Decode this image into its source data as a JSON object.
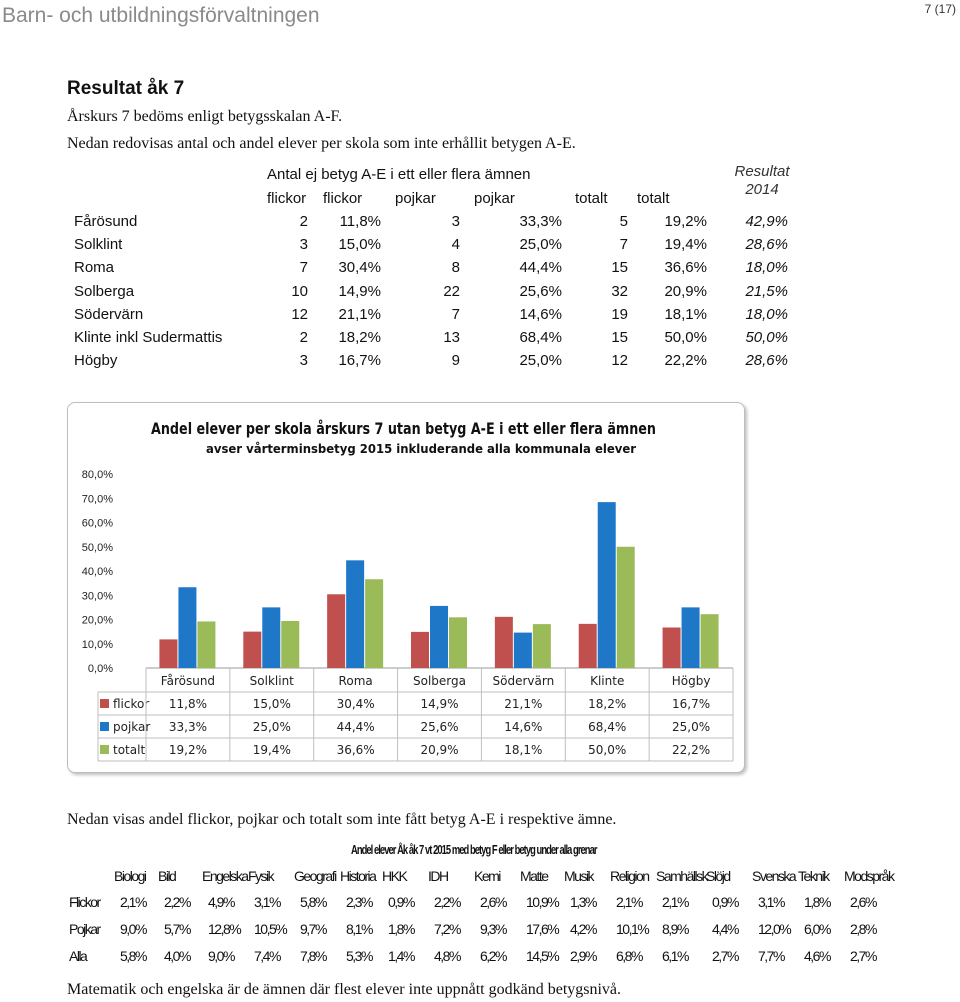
{
  "header": {
    "title": "Barn- och utbildningsförvaltningen",
    "page": "7 (17)"
  },
  "section": {
    "title": "Resultat åk 7",
    "lines": [
      "Årskurs 7 bedöms enligt betygsskalan A-F.",
      "Nedan redovisas antal och andel elever per skola som inte erhållit betygen A-E."
    ]
  },
  "table": {
    "group_header": "Antal ej betyg A-E i ett eller flera ämnen",
    "result_header": [
      "Resultat",
      "2014"
    ],
    "columns": [
      "flickor",
      "flickor",
      "pojkar",
      "pojkar",
      "totalt",
      "totalt"
    ],
    "rows": [
      {
        "name": "Fårösund",
        "cells": [
          "2",
          "11,8%",
          "3",
          "33,3%",
          "5",
          "19,2%"
        ],
        "result": "42,9%"
      },
      {
        "name": "Solklint",
        "cells": [
          "3",
          "15,0%",
          "4",
          "25,0%",
          "7",
          "19,4%"
        ],
        "result": "28,6%"
      },
      {
        "name": "Roma",
        "cells": [
          "7",
          "30,4%",
          "8",
          "44,4%",
          "15",
          "36,6%"
        ],
        "result": "18,0%"
      },
      {
        "name": "Solberga",
        "cells": [
          "10",
          "14,9%",
          "22",
          "25,6%",
          "32",
          "20,9%"
        ],
        "result": "21,5%"
      },
      {
        "name": "Södervärn",
        "cells": [
          "12",
          "21,1%",
          "7",
          "14,6%",
          "19",
          "18,1%"
        ],
        "result": "18,0%"
      },
      {
        "name": "Klinte inkl Sudermattis",
        "cells": [
          "2",
          "18,2%",
          "13",
          "68,4%",
          "15",
          "50,0%"
        ],
        "result": "50,0%"
      },
      {
        "name": "Högby",
        "cells": [
          "3",
          "16,7%",
          "9",
          "25,0%",
          "12",
          "22,2%"
        ],
        "result": "28,6%"
      }
    ]
  },
  "chart_data": {
    "type": "bar",
    "title": "Andel elever per skola årskurs 7 utan betyg A-E i ett eller flera ämnen",
    "subtitle": "avser vårterminsbetyg 2015 inkluderande alla kommunala elever",
    "categories": [
      "Fårösund",
      "Solklint",
      "Roma",
      "Solberga",
      "Södervärn",
      "Klinte",
      "Högby"
    ],
    "yticks": [
      "0,0%",
      "10,0%",
      "20,0%",
      "30,0%",
      "40,0%",
      "50,0%",
      "60,0%",
      "70,0%",
      "80,0%"
    ],
    "ylim": [
      0,
      80
    ],
    "grid": false,
    "legend": "data-table",
    "series": [
      {
        "name": "flickor",
        "color": "#c0504d",
        "values": [
          11.8,
          15.0,
          30.4,
          14.9,
          21.1,
          18.2,
          16.7
        ],
        "labels": [
          "11,8%",
          "15,0%",
          "30,4%",
          "14,9%",
          "21,1%",
          "18,2%",
          "16,7%"
        ]
      },
      {
        "name": "pojkar",
        "color": "#1f77c8",
        "values": [
          33.3,
          25.0,
          44.4,
          25.6,
          14.6,
          68.4,
          25.0
        ],
        "labels": [
          "33,3%",
          "25,0%",
          "44,4%",
          "25,6%",
          "14,6%",
          "68,4%",
          "25,0%"
        ]
      },
      {
        "name": "totalt",
        "color": "#9bbb59",
        "values": [
          19.2,
          19.4,
          36.6,
          20.9,
          18.1,
          50.0,
          22.2
        ],
        "labels": [
          "19,2%",
          "19,4%",
          "36,6%",
          "20,9%",
          "18,1%",
          "50,0%",
          "22,2%"
        ]
      }
    ]
  },
  "after_chart_text": "Nedan visas andel flickor, pojkar och totalt som inte fått betyg A-E i respektive ämne.",
  "subject_table": {
    "title": "Andel elever Åk åk 7 vt 2015 med betyg F eller betyg under alla grenar",
    "subjects": [
      "Biologi",
      "Bild",
      "Engelska",
      "Fysik",
      "Geografi",
      "Historia",
      "HKK",
      "IDH",
      "Kemi",
      "Matte",
      "Musik",
      "Religion",
      "Samhällsk",
      "Slöjd",
      "Svenska",
      "Teknik",
      "Modspråk"
    ],
    "rows": [
      {
        "label": "Flickor",
        "values": [
          "2,1%",
          "2,2%",
          "4,9%",
          "3,1%",
          "5,8%",
          "2,3%",
          "0,9%",
          "2,2%",
          "2,6%",
          "10,9%",
          "1,3%",
          "2,1%",
          "2,1%",
          "0,9%",
          "3,1%",
          "1,8%",
          "2,6%"
        ]
      },
      {
        "label": "Pojkar",
        "values": [
          "9,0%",
          "5,7%",
          "12,8%",
          "10,5%",
          "9,7%",
          "8,1%",
          "1,8%",
          "7,2%",
          "9,3%",
          "17,6%",
          "4,2%",
          "10,1%",
          "8,9%",
          "4,4%",
          "12,0%",
          "6,0%",
          "2,8%"
        ]
      },
      {
        "label": "Alla",
        "values": [
          "5,8%",
          "4,0%",
          "9,0%",
          "7,4%",
          "7,8%",
          "5,3%",
          "1,4%",
          "4,8%",
          "6,2%",
          "14,5%",
          "2,9%",
          "6,8%",
          "6,1%",
          "2,7%",
          "7,7%",
          "4,6%",
          "2,7%"
        ]
      }
    ]
  },
  "closing_text": "Matematik och engelska är de ämnen där flest elever inte uppnått godkänd betygsnivå."
}
